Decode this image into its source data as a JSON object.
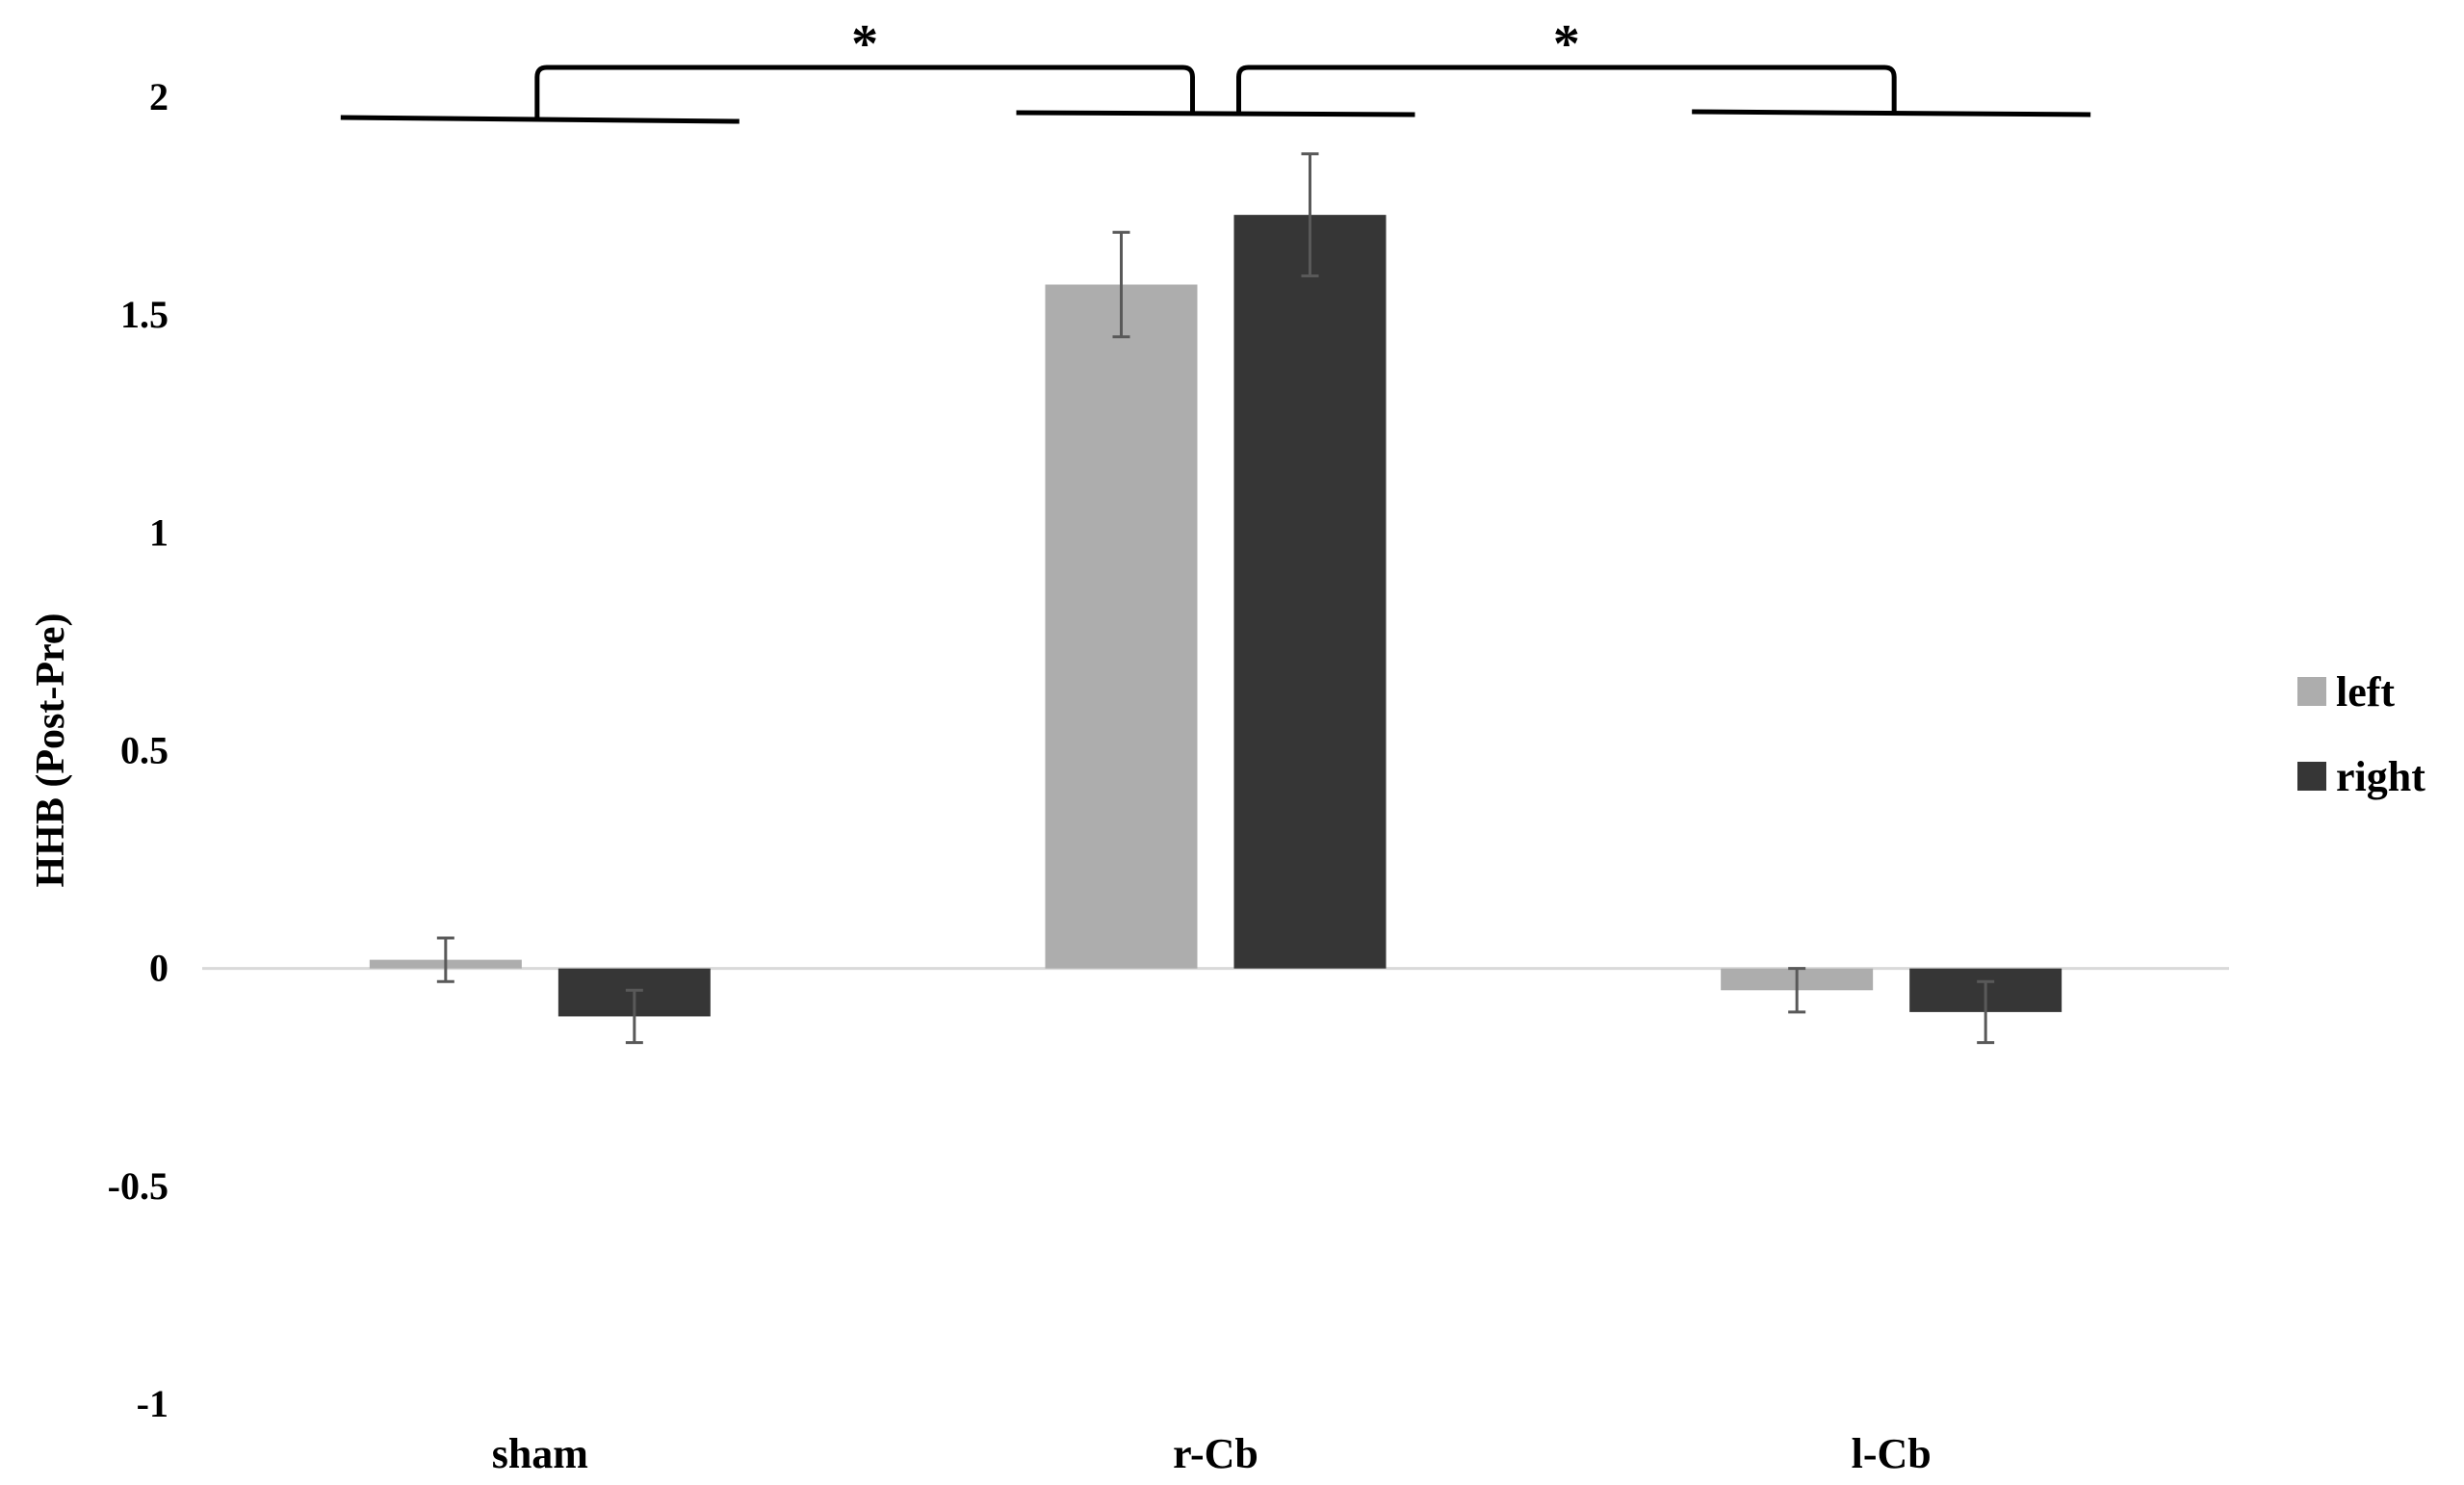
{
  "chart_data": {
    "type": "bar",
    "title": "",
    "xlabel": "",
    "ylabel": "HHB (Post-Pre)",
    "ylim": [
      -1,
      2
    ],
    "yticks": [
      2,
      1.5,
      1,
      0.5,
      0,
      -0.5,
      -1
    ],
    "ytick_labels": [
      "2",
      "1.5",
      "1",
      "0.5",
      "0",
      "-0.5",
      "-1"
    ],
    "categories": [
      "sham",
      "r-Cb",
      "l-Cb"
    ],
    "series": [
      {
        "name": "left",
        "color": "#adadad",
        "values": [
          0.02,
          1.57,
          -0.05
        ],
        "errors": [
          0.05,
          0.12,
          0.05
        ]
      },
      {
        "name": "right",
        "color": "#363636",
        "values": [
          -0.11,
          1.73,
          -0.1
        ],
        "errors": [
          0.06,
          0.14,
          0.07
        ]
      }
    ],
    "grid": false,
    "legend": {
      "position": "right"
    },
    "annotations": [
      {
        "text": "*",
        "from": "sham",
        "to": "r-Cb"
      },
      {
        "text": "*",
        "from": "r-Cb",
        "to": "l-Cb"
      }
    ]
  }
}
